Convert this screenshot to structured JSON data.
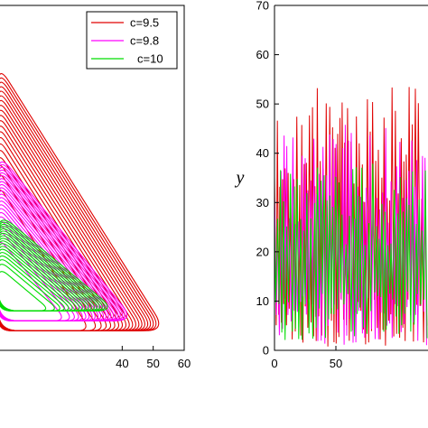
{
  "chart_data": [
    {
      "type": "line",
      "title": "",
      "xlabel": "",
      "ylabel": "",
      "xlim": [
        0,
        60
      ],
      "ylim": [
        0,
        70
      ],
      "x_ticks": [
        "40",
        "50",
        "60"
      ],
      "legend": {
        "placement": "top-right",
        "entries": [
          "c=9.5",
          "c=9.8",
          "c=10"
        ]
      },
      "series": [
        {
          "name": "c=9.5",
          "color": "#e00000",
          "orbit_vertices": [
            [
              0,
              4
            ],
            [
              54,
              4
            ],
            [
              0,
              58
            ]
          ],
          "y_max": 53
        },
        {
          "name": "c=9.8",
          "color": "#ff00ff",
          "orbit_vertices": [
            [
              0,
              6
            ],
            [
              44,
              6
            ],
            [
              0,
              40
            ]
          ],
          "y_max": 43
        },
        {
          "name": "c=10",
          "color": "#00dd00",
          "orbit_vertices": [
            [
              0,
              8
            ],
            [
              38,
              8
            ],
            [
              0,
              28
            ]
          ],
          "y_max": 35
        }
      ]
    },
    {
      "type": "line",
      "title": "",
      "xlabel": "",
      "ylabel": "y",
      "xlim": [
        0,
        125
      ],
      "ylim": [
        0,
        70
      ],
      "x_ticks": [
        "0",
        "50"
      ],
      "y_ticks": [
        "0",
        "10",
        "20",
        "30",
        "40",
        "50",
        "60",
        "70"
      ],
      "series": [
        {
          "name": "c=9.5",
          "color": "#e00000",
          "peak_max": 53.5,
          "min": 0.5
        },
        {
          "name": "c=9.8",
          "color": "#ff00ff",
          "peak_max": 46,
          "min": 1
        },
        {
          "name": "c=10",
          "color": "#00dd00",
          "peak_max": 38,
          "min": 2
        }
      ]
    }
  ]
}
